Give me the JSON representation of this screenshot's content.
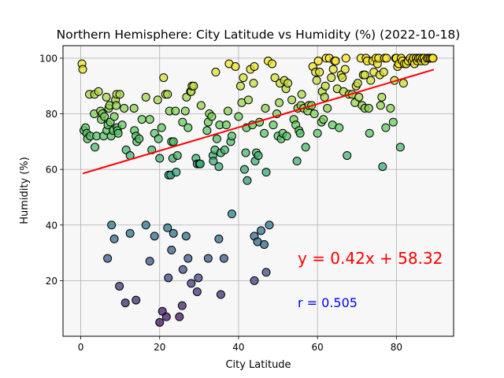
{
  "chart_data": {
    "type": "scatter",
    "title": "Northern Hemisphere: City Latitude vs Humidity (%) (2022-10-18)",
    "xlabel": "City Latitude",
    "ylabel": "Humidity (%)",
    "xlim": [
      -4.5,
      94.5
    ],
    "ylim": [
      0,
      104.5
    ],
    "xticks": [
      0,
      20,
      40,
      60,
      80
    ],
    "yticks": [
      20,
      40,
      60,
      80,
      100
    ],
    "grid": true,
    "regression": {
      "slope": 0.42,
      "intercept": 58.32,
      "x_range": [
        0.5,
        89.5
      ],
      "color": "#ff0000"
    },
    "equation_text": "y = 0.42x + 58.32",
    "r_text": "r = 0.505",
    "colors": {
      "equation": "#ff0000",
      "r_value": "#0000ff",
      "plot_bg": "#f7f7f7",
      "grid": "#b0b0b0"
    },
    "points": [
      {
        "x": 0.3,
        "y": 98
      },
      {
        "x": 0.5,
        "y": 96
      },
      {
        "x": 0.8,
        "y": 74
      },
      {
        "x": 1.2,
        "y": 75
      },
      {
        "x": 1.5,
        "y": 73
      },
      {
        "x": 1.7,
        "y": 71
      },
      {
        "x": 2.2,
        "y": 87
      },
      {
        "x": 2.4,
        "y": 72
      },
      {
        "x": 3.5,
        "y": 87
      },
      {
        "x": 3.4,
        "y": 80
      },
      {
        "x": 3.6,
        "y": 68
      },
      {
        "x": 4.0,
        "y": 72
      },
      {
        "x": 4.5,
        "y": 88
      },
      {
        "x": 5.0,
        "y": 81
      },
      {
        "x": 5.2,
        "y": 78
      },
      {
        "x": 5.5,
        "y": 80
      },
      {
        "x": 5.8,
        "y": 72
      },
      {
        "x": 6.0,
        "y": 79
      },
      {
        "x": 6.5,
        "y": 86
      },
      {
        "x": 6.6,
        "y": 74
      },
      {
        "x": 6.9,
        "y": 76
      },
      {
        "x": 7.1,
        "y": 82
      },
      {
        "x": 7.3,
        "y": 83
      },
      {
        "x": 7.5,
        "y": 77
      },
      {
        "x": 7.7,
        "y": 72
      },
      {
        "x": 8.2,
        "y": 74
      },
      {
        "x": 8.5,
        "y": 79
      },
      {
        "x": 8.8,
        "y": 85
      },
      {
        "x": 9.0,
        "y": 83
      },
      {
        "x": 9.1,
        "y": 87
      },
      {
        "x": 9.2,
        "y": 75
      },
      {
        "x": 9.3,
        "y": 74
      },
      {
        "x": 9.5,
        "y": 73
      },
      {
        "x": 9.9,
        "y": 87
      },
      {
        "x": 10.5,
        "y": 76
      },
      {
        "x": 11.0,
        "y": 82
      },
      {
        "x": 11.5,
        "y": 67
      },
      {
        "x": 12.5,
        "y": 65
      },
      {
        "x": 13.5,
        "y": 82
      },
      {
        "x": 13.6,
        "y": 74
      },
      {
        "x": 14.0,
        "y": 72
      },
      {
        "x": 14.2,
        "y": 70
      },
      {
        "x": 14.8,
        "y": 71
      },
      {
        "x": 15.5,
        "y": 78
      },
      {
        "x": 16.5,
        "y": 86
      },
      {
        "x": 17.5,
        "y": 78
      },
      {
        "x": 18.0,
        "y": 67
      },
      {
        "x": 18.7,
        "y": 73
      },
      {
        "x": 19.5,
        "y": 85
      },
      {
        "x": 19.7,
        "y": 71
      },
      {
        "x": 20.0,
        "y": 64
      },
      {
        "x": 20.5,
        "y": 75
      },
      {
        "x": 21.0,
        "y": 93
      },
      {
        "x": 21.5,
        "y": 87
      },
      {
        "x": 22.0,
        "y": 87
      },
      {
        "x": 22.5,
        "y": 81
      },
      {
        "x": 22.3,
        "y": 58
      },
      {
        "x": 22.8,
        "y": 58
      },
      {
        "x": 23.0,
        "y": 70
      },
      {
        "x": 23.3,
        "y": 64
      },
      {
        "x": 23.5,
        "y": 70
      },
      {
        "x": 24.0,
        "y": 81
      },
      {
        "x": 24.5,
        "y": 65
      },
      {
        "x": 24.2,
        "y": 59
      },
      {
        "x": 25.8,
        "y": 77
      },
      {
        "x": 26.5,
        "y": 81
      },
      {
        "x": 26.8,
        "y": 86
      },
      {
        "x": 27.2,
        "y": 75
      },
      {
        "x": 27.8,
        "y": 88
      },
      {
        "x": 28.0,
        "y": 88
      },
      {
        "x": 28.2,
        "y": 90
      },
      {
        "x": 28.6,
        "y": 90
      },
      {
        "x": 29.2,
        "y": 64
      },
      {
        "x": 29.5,
        "y": 62
      },
      {
        "x": 30.0,
        "y": 62
      },
      {
        "x": 30.5,
        "y": 83
      },
      {
        "x": 30.3,
        "y": 62
      },
      {
        "x": 32.0,
        "y": 74
      },
      {
        "x": 32.3,
        "y": 77
      },
      {
        "x": 32.6,
        "y": 80
      },
      {
        "x": 33.2,
        "y": 79
      },
      {
        "x": 33.5,
        "y": 65
      },
      {
        "x": 33.6,
        "y": 63
      },
      {
        "x": 34.0,
        "y": 67
      },
      {
        "x": 34.2,
        "y": 95
      },
      {
        "x": 34.5,
        "y": 71
      },
      {
        "x": 35.0,
        "y": 61
      },
      {
        "x": 35.2,
        "y": 76
      },
      {
        "x": 35.5,
        "y": 66
      },
      {
        "x": 36.5,
        "y": 67
      },
      {
        "x": 36.9,
        "y": 76
      },
      {
        "x": 37.3,
        "y": 81
      },
      {
        "x": 37.6,
        "y": 98
      },
      {
        "x": 38.0,
        "y": 70
      },
      {
        "x": 38.3,
        "y": 72
      },
      {
        "x": 39.2,
        "y": 97
      },
      {
        "x": 40.0,
        "y": 79
      },
      {
        "x": 40.5,
        "y": 90
      },
      {
        "x": 40.8,
        "y": 84
      },
      {
        "x": 41.2,
        "y": 93
      },
      {
        "x": 41.5,
        "y": 60
      },
      {
        "x": 41.8,
        "y": 66
      },
      {
        "x": 42.0,
        "y": 75
      },
      {
        "x": 42.2,
        "y": 56
      },
      {
        "x": 42.5,
        "y": 85
      },
      {
        "x": 43.0,
        "y": 96
      },
      {
        "x": 43.5,
        "y": 76
      },
      {
        "x": 43.8,
        "y": 91
      },
      {
        "x": 44.0,
        "y": 97
      },
      {
        "x": 44.2,
        "y": 63
      },
      {
        "x": 44.5,
        "y": 66
      },
      {
        "x": 45.0,
        "y": 65
      },
      {
        "x": 45.3,
        "y": 77
      },
      {
        "x": 46.5,
        "y": 73
      },
      {
        "x": 46.8,
        "y": 82
      },
      {
        "x": 47.0,
        "y": 59
      },
      {
        "x": 47.5,
        "y": 99
      },
      {
        "x": 48.5,
        "y": 98
      },
      {
        "x": 48.8,
        "y": 76
      },
      {
        "x": 49.2,
        "y": 93
      },
      {
        "x": 49.7,
        "y": 80
      },
      {
        "x": 50.0,
        "y": 72
      },
      {
        "x": 50.3,
        "y": 84
      },
      {
        "x": 50.5,
        "y": 91
      },
      {
        "x": 50.8,
        "y": 71
      },
      {
        "x": 51.2,
        "y": 73
      },
      {
        "x": 51.6,
        "y": 92
      },
      {
        "x": 52.0,
        "y": 89
      },
      {
        "x": 52.5,
        "y": 91
      },
      {
        "x": 52.2,
        "y": 72
      },
      {
        "x": 53.5,
        "y": 85
      },
      {
        "x": 54.0,
        "y": 78
      },
      {
        "x": 54.5,
        "y": 76
      },
      {
        "x": 54.8,
        "y": 63
      },
      {
        "x": 55.0,
        "y": 82
      },
      {
        "x": 55.3,
        "y": 74
      },
      {
        "x": 55.6,
        "y": 73
      },
      {
        "x": 55.8,
        "y": 83
      },
      {
        "x": 56.0,
        "y": 87
      },
      {
        "x": 56.5,
        "y": 82
      },
      {
        "x": 57.0,
        "y": 68
      },
      {
        "x": 57.5,
        "y": 81
      },
      {
        "x": 57.8,
        "y": 83
      },
      {
        "x": 58.5,
        "y": 83
      },
      {
        "x": 58.8,
        "y": 97
      },
      {
        "x": 59.2,
        "y": 80
      },
      {
        "x": 59.5,
        "y": 95
      },
      {
        "x": 59.8,
        "y": 92
      },
      {
        "x": 60.2,
        "y": 99
      },
      {
        "x": 60.5,
        "y": 95
      },
      {
        "x": 60.0,
        "y": 73
      },
      {
        "x": 61.0,
        "y": 77
      },
      {
        "x": 61.2,
        "y": 88
      },
      {
        "x": 61.5,
        "y": 78
      },
      {
        "x": 61.8,
        "y": 86
      },
      {
        "x": 62.0,
        "y": 90
      },
      {
        "x": 62.2,
        "y": 100
      },
      {
        "x": 62.5,
        "y": 82
      },
      {
        "x": 63.0,
        "y": 100
      },
      {
        "x": 63.5,
        "y": 93
      },
      {
        "x": 63.8,
        "y": 76
      },
      {
        "x": 64.0,
        "y": 96
      },
      {
        "x": 64.3,
        "y": 99
      },
      {
        "x": 64.6,
        "y": 99
      },
      {
        "x": 65.0,
        "y": 89
      },
      {
        "x": 65.5,
        "y": 75
      },
      {
        "x": 66.0,
        "y": 94
      },
      {
        "x": 66.3,
        "y": 93
      },
      {
        "x": 66.6,
        "y": 88
      },
      {
        "x": 67.0,
        "y": 96
      },
      {
        "x": 67.2,
        "y": 100
      },
      {
        "x": 67.5,
        "y": 65
      },
      {
        "x": 68.0,
        "y": 87
      },
      {
        "x": 68.8,
        "y": 87
      },
      {
        "x": 69.5,
        "y": 84
      },
      {
        "x": 69.8,
        "y": 90
      },
      {
        "x": 70.2,
        "y": 91
      },
      {
        "x": 70.5,
        "y": 86
      },
      {
        "x": 71.0,
        "y": 100
      },
      {
        "x": 71.3,
        "y": 83
      },
      {
        "x": 71.6,
        "y": 94
      },
      {
        "x": 72.0,
        "y": 94
      },
      {
        "x": 72.0,
        "y": 82
      },
      {
        "x": 72.3,
        "y": 100
      },
      {
        "x": 72.6,
        "y": 99
      },
      {
        "x": 73.0,
        "y": 82
      },
      {
        "x": 73.2,
        "y": 73
      },
      {
        "x": 73.5,
        "y": 92
      },
      {
        "x": 74.0,
        "y": 99
      },
      {
        "x": 74.3,
        "y": 95
      },
      {
        "x": 74.8,
        "y": 100
      },
      {
        "x": 75.2,
        "y": 98
      },
      {
        "x": 75.5,
        "y": 100
      },
      {
        "x": 75.8,
        "y": 94
      },
      {
        "x": 76.0,
        "y": 83
      },
      {
        "x": 76.3,
        "y": 86
      },
      {
        "x": 76.5,
        "y": 61
      },
      {
        "x": 76.8,
        "y": 95
      },
      {
        "x": 77.0,
        "y": 100
      },
      {
        "x": 77.3,
        "y": 75
      },
      {
        "x": 77.5,
        "y": 100
      },
      {
        "x": 78.5,
        "y": 82
      },
      {
        "x": 79.2,
        "y": 77
      },
      {
        "x": 79.5,
        "y": 92
      },
      {
        "x": 79.8,
        "y": 100
      },
      {
        "x": 80.0,
        "y": 100
      },
      {
        "x": 80.3,
        "y": 97
      },
      {
        "x": 80.6,
        "y": 98
      },
      {
        "x": 81.0,
        "y": 68
      },
      {
        "x": 81.2,
        "y": 100
      },
      {
        "x": 81.5,
        "y": 99
      },
      {
        "x": 81.8,
        "y": 91
      },
      {
        "x": 82.0,
        "y": 98
      },
      {
        "x": 82.5,
        "y": 98
      },
      {
        "x": 83.0,
        "y": 99
      },
      {
        "x": 83.5,
        "y": 100
      },
      {
        "x": 84.0,
        "y": 99
      },
      {
        "x": 84.3,
        "y": 100
      },
      {
        "x": 84.6,
        "y": 98
      },
      {
        "x": 85.0,
        "y": 100
      },
      {
        "x": 85.3,
        "y": 99
      },
      {
        "x": 85.6,
        "y": 100
      },
      {
        "x": 86.0,
        "y": 100
      },
      {
        "x": 86.3,
        "y": 99
      },
      {
        "x": 86.6,
        "y": 100
      },
      {
        "x": 87.0,
        "y": 100
      },
      {
        "x": 87.3,
        "y": 99
      },
      {
        "x": 87.8,
        "y": 100
      },
      {
        "x": 88.2,
        "y": 100
      },
      {
        "x": 88.6,
        "y": 100
      },
      {
        "x": 89.0,
        "y": 100
      },
      {
        "x": 89.3,
        "y": 100
      },
      {
        "x": 6.8,
        "y": 28
      },
      {
        "x": 7.8,
        "y": 40
      },
      {
        "x": 8.5,
        "y": 35
      },
      {
        "x": 9.8,
        "y": 18
      },
      {
        "x": 11.3,
        "y": 12
      },
      {
        "x": 12.5,
        "y": 37
      },
      {
        "x": 14.0,
        "y": 13
      },
      {
        "x": 16.5,
        "y": 40
      },
      {
        "x": 17.5,
        "y": 27
      },
      {
        "x": 18.7,
        "y": 36
      },
      {
        "x": 20.0,
        "y": 5
      },
      {
        "x": 20.7,
        "y": 9
      },
      {
        "x": 21.7,
        "y": 7
      },
      {
        "x": 22.0,
        "y": 39
      },
      {
        "x": 22.2,
        "y": 21
      },
      {
        "x": 23.0,
        "y": 31
      },
      {
        "x": 23.5,
        "y": 37
      },
      {
        "x": 25.0,
        "y": 7
      },
      {
        "x": 25.7,
        "y": 11
      },
      {
        "x": 25.9,
        "y": 24
      },
      {
        "x": 26.7,
        "y": 36
      },
      {
        "x": 27.2,
        "y": 28
      },
      {
        "x": 28.0,
        "y": 19
      },
      {
        "x": 29.5,
        "y": 16
      },
      {
        "x": 29.8,
        "y": 21
      },
      {
        "x": 32.3,
        "y": 28
      },
      {
        "x": 35.0,
        "y": 35
      },
      {
        "x": 35.5,
        "y": 15
      },
      {
        "x": 36.3,
        "y": 28
      },
      {
        "x": 38.3,
        "y": 44
      },
      {
        "x": 44.0,
        "y": 36
      },
      {
        "x": 44.0,
        "y": 20
      },
      {
        "x": 44.8,
        "y": 34
      },
      {
        "x": 45.7,
        "y": 38
      },
      {
        "x": 46.5,
        "y": 33
      },
      {
        "x": 47.0,
        "y": 23
      },
      {
        "x": 47.8,
        "y": 40
      }
    ]
  }
}
